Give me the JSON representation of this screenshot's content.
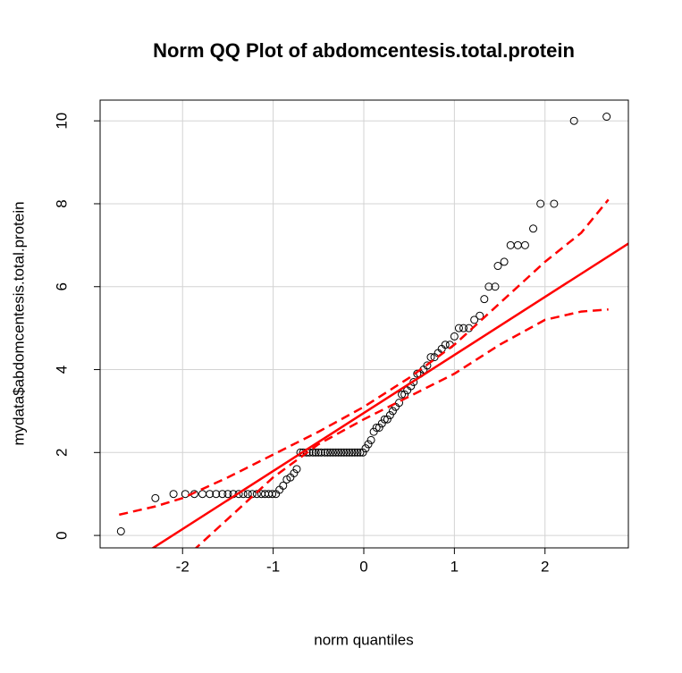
{
  "chart_data": {
    "type": "scatter",
    "title": "Norm QQ Plot of abdomcentesis.total.protein",
    "x_label": "norm quantiles",
    "y_label": "mydata$abdomcentesis.total.protein",
    "xlim": [
      -2.91,
      2.92
    ],
    "ylim": [
      -0.3,
      10.5
    ],
    "xticks": [
      -2,
      -1,
      0,
      1,
      2
    ],
    "yticks": [
      0,
      2,
      4,
      6,
      8,
      10
    ],
    "grid": true,
    "point_color": "#000000",
    "x": [
      -2.68,
      -2.3,
      -2.1,
      -1.97,
      -1.87,
      -1.78,
      -1.7,
      -1.63,
      -1.56,
      -1.5,
      -1.44,
      -1.38,
      -1.33,
      -1.28,
      -1.23,
      -1.18,
      -1.13,
      -1.09,
      -1.05,
      -1.01,
      -0.97,
      -0.93,
      -0.89,
      -0.85,
      -0.81,
      -0.77,
      -0.74,
      -0.7,
      -0.67,
      -0.63,
      -0.6,
      -0.56,
      -0.53,
      -0.5,
      -0.47,
      -0.43,
      -0.4,
      -0.37,
      -0.34,
      -0.31,
      -0.28,
      -0.25,
      -0.22,
      -0.19,
      -0.16,
      -0.13,
      -0.1,
      -0.07,
      -0.04,
      -0.01,
      0.02,
      0.05,
      0.08,
      0.11,
      0.14,
      0.17,
      0.2,
      0.23,
      0.26,
      0.29,
      0.32,
      0.35,
      0.39,
      0.42,
      0.45,
      0.48,
      0.52,
      0.55,
      0.59,
      0.62,
      0.66,
      0.7,
      0.74,
      0.78,
      0.82,
      0.86,
      0.9,
      0.95,
      1.0,
      1.05,
      1.1,
      1.16,
      1.22,
      1.28,
      1.33,
      1.38,
      1.45,
      1.48,
      1.55,
      1.62,
      1.7,
      1.78,
      1.87,
      1.95,
      2.1,
      2.32,
      2.68
    ],
    "y": [
      0.1,
      0.9,
      1.0,
      1.0,
      1.0,
      1.0,
      1.0,
      1.0,
      1.0,
      1.0,
      1.0,
      1.0,
      1.0,
      1.0,
      1.0,
      1.0,
      1.0,
      1.0,
      1.0,
      1.0,
      1.0,
      1.1,
      1.2,
      1.35,
      1.4,
      1.5,
      1.6,
      2.0,
      2.0,
      2.0,
      2.0,
      2.0,
      2.0,
      2.0,
      2.0,
      2.0,
      2.0,
      2.0,
      2.0,
      2.0,
      2.0,
      2.0,
      2.0,
      2.0,
      2.0,
      2.0,
      2.0,
      2.0,
      2.0,
      2.0,
      2.1,
      2.2,
      2.3,
      2.5,
      2.6,
      2.6,
      2.7,
      2.8,
      2.8,
      2.9,
      3.0,
      3.1,
      3.2,
      3.4,
      3.4,
      3.5,
      3.6,
      3.7,
      3.9,
      3.9,
      4.0,
      4.1,
      4.3,
      4.3,
      4.4,
      4.5,
      4.6,
      4.6,
      4.8,
      5.0,
      5.0,
      5.0,
      5.2,
      5.3,
      5.7,
      6.0,
      6.0,
      6.5,
      6.6,
      7.0,
      7.0,
      7.0,
      7.4,
      8.0,
      8.0,
      10.0,
      10.1
    ],
    "line_color": "#ff0000",
    "reference_line": {
      "x": [
        -2.91,
        2.92
      ],
      "y": [
        -1.12,
        7.04
      ]
    },
    "envelope_upper": {
      "x": [
        -2.7,
        -2.3,
        -2.0,
        -1.5,
        -1.0,
        -0.5,
        0.0,
        0.5,
        1.0,
        1.5,
        2.0,
        2.4,
        2.7
      ],
      "y": [
        0.5,
        0.7,
        0.9,
        1.4,
        1.95,
        2.5,
        3.1,
        3.8,
        4.6,
        5.6,
        6.6,
        7.3,
        8.1
      ]
    },
    "envelope_lower": {
      "x": [
        -2.0,
        -1.5,
        -1.0,
        -0.5,
        0.0,
        0.5,
        1.0,
        1.5,
        2.0,
        2.4,
        2.7
      ],
      "y": [
        -0.6,
        0.4,
        1.4,
        2.2,
        2.8,
        3.35,
        3.9,
        4.6,
        5.2,
        5.4,
        5.45
      ]
    }
  }
}
